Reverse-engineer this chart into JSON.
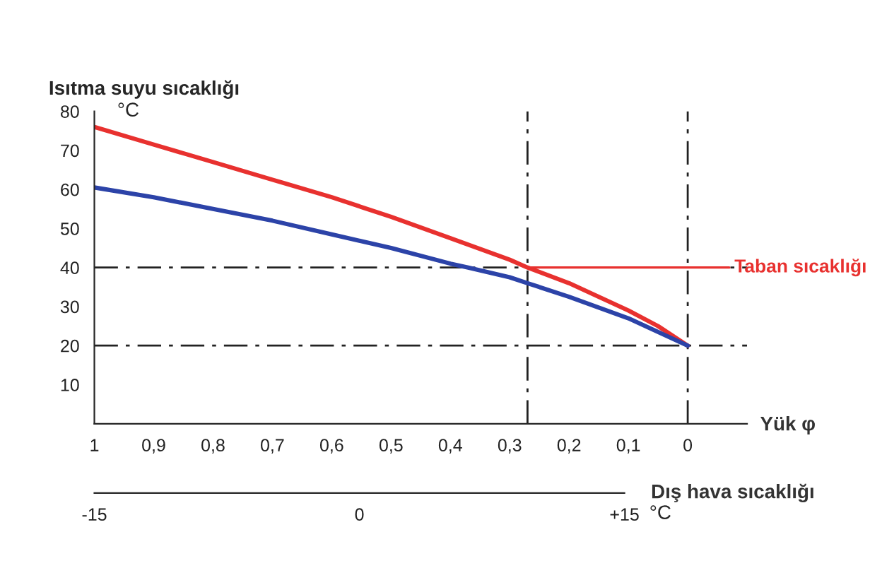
{
  "chart_data": {
    "type": "line",
    "ylabel": "Isıtma suyu sıcaklığı",
    "xlabel": "Yük φ",
    "x2label": "Dış hava sıcaklığı",
    "xlim": [
      1,
      -0.1
    ],
    "xticks": [
      1,
      {
        "value": 0.9,
        "label": "0,9"
      },
      {
        "value": 0.8,
        "label": "0,8"
      },
      {
        "value": 0.7,
        "label": "0,7"
      },
      {
        "value": 0.6,
        "label": "0,6"
      },
      {
        "value": 0.5,
        "label": "0,5"
      },
      {
        "value": 0.4,
        "label": "0,4"
      },
      {
        "value": 0.3,
        "label": "0,3"
      },
      {
        "value": 0.2,
        "label": "0,2"
      },
      {
        "value": 0.1,
        "label": "0,1"
      },
      0
    ],
    "ylim": [
      0,
      80
    ],
    "yticks": [
      10,
      20,
      30,
      40,
      50,
      60,
      70,
      80
    ],
    "x2lim": [
      -15,
      15
    ],
    "x2ticks": [
      -15,
      0,
      {
        "value": 15,
        "label": "+15"
      }
    ],
    "series": [
      {
        "color": "#e8312f",
        "x": [
          1,
          0.9,
          0.8,
          0.7,
          0.6,
          0.5,
          0.4,
          0.3,
          0.27,
          0.2,
          0.1,
          0.05,
          0
        ],
        "values": [
          76,
          71.5,
          67,
          62.5,
          58,
          53,
          47.5,
          42,
          40,
          36,
          29,
          25,
          20
        ]
      },
      {
        "color": "#2c43a8",
        "x": [
          1,
          0.9,
          0.8,
          0.7,
          0.6,
          0.5,
          0.4,
          0.37,
          0.3,
          0.27,
          0.2,
          0.1,
          0
        ],
        "values": [
          60.5,
          58,
          55,
          52,
          48.5,
          45,
          41,
          40,
          37.5,
          36,
          32.5,
          27,
          20
        ]
      },
      {
        "name": "Taban sıcaklığı",
        "color": "#e8312f",
        "x": [
          0.27,
          -0.07
        ],
        "values": [
          40,
          40
        ]
      }
    ],
    "ref_lines": [
      {
        "axis": "y",
        "value": 40
      },
      {
        "axis": "y",
        "value": 20
      },
      {
        "axis": "x",
        "value": 0.27
      },
      {
        "axis": "x",
        "value": 0
      }
    ],
    "annotations": [
      "°C",
      "°C"
    ],
    "grid": false,
    "legend": false,
    "marker": "none"
  }
}
